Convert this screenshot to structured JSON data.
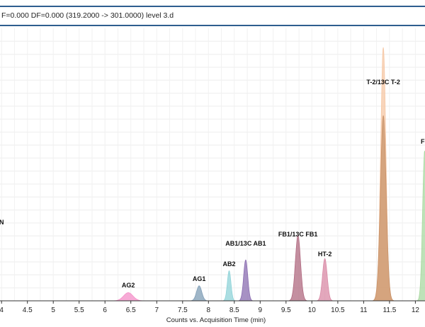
{
  "header": {
    "title": "F=0.000 DF=0.000 (319.2000 -> 301.0000) level 3.d"
  },
  "chart_data": {
    "type": "area",
    "xlabel": "Counts vs. Acquisition Time (min)",
    "ylabel": "",
    "xlim": [
      3.45,
      12.2
    ],
    "ylim": [
      0,
      1
    ],
    "x_ticks": [
      "4",
      "4.5",
      "5",
      "5.5",
      "6",
      "6.5",
      "7",
      "7.5",
      "8",
      "8.5",
      "9",
      "9.5",
      "10",
      "10.5",
      "11",
      "11.5",
      "12"
    ],
    "grid": true,
    "legend": "none",
    "peaks": [
      {
        "label": "AG2",
        "rt": 6.45,
        "height": 0.03,
        "width": 0.09,
        "color": "#f48fc8"
      },
      {
        "label": "AG1",
        "rt": 7.82,
        "height": 0.055,
        "width": 0.05,
        "color": "#7f9db6"
      },
      {
        "label": "AB2",
        "rt": 8.4,
        "height": 0.11,
        "width": 0.035,
        "color": "#8fd3d8"
      },
      {
        "label": "AB1/13C AB1",
        "rt": 8.72,
        "height": 0.15,
        "width": 0.04,
        "color": "#8a6cb0"
      },
      {
        "label": "FB1/13C FB1",
        "rt": 9.73,
        "height": 0.24,
        "width": 0.05,
        "color": "#b06a80"
      },
      {
        "label": "HT-2",
        "rt": 10.25,
        "height": 0.155,
        "width": 0.045,
        "color": "#d98aa6"
      },
      {
        "label": "T-2/13C T-2",
        "rt": 11.38,
        "height": 0.93,
        "width": 0.05,
        "color": "#f6c7a4"
      },
      {
        "label": "T-2/13C T-2",
        "rt": 11.38,
        "height": 0.68,
        "width": 0.055,
        "color": "#c9936a"
      },
      {
        "label": "F",
        "rt": 12.18,
        "height": 0.55,
        "width": 0.04,
        "color": "#a8d8a0"
      }
    ],
    "annotations": [
      {
        "text": "AG2",
        "x": 6.45
      },
      {
        "text": "AG1",
        "x": 7.82
      },
      {
        "text": "AB2",
        "x": 8.4
      },
      {
        "text": "AB1/13C AB1",
        "x": 8.72
      },
      {
        "text": "FB1/13C FB1",
        "x": 9.73
      },
      {
        "text": "HT-2",
        "x": 10.25
      },
      {
        "text": "T-2/13C T-2",
        "x": 11.38
      },
      {
        "text": "F",
        "x": 12.2
      },
      {
        "text": "N",
        "x": 3.45
      }
    ]
  }
}
